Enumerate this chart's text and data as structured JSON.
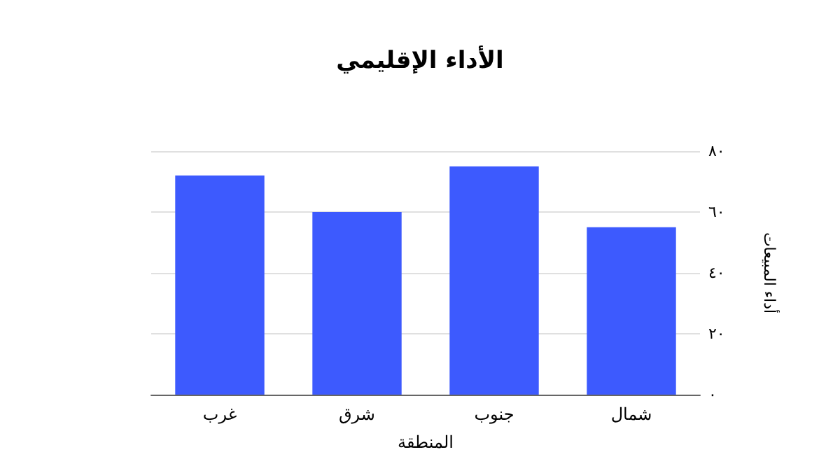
{
  "chart_data": {
    "type": "bar",
    "title": "الأداء الإقليمي",
    "xlabel": "المنطقة",
    "ylabel": "أداء المبيعات",
    "categories": [
      "غرب",
      "شرق",
      "جنوب",
      "شمال"
    ],
    "values": [
      72,
      60,
      75,
      55
    ],
    "color": "#3d5afe",
    "ylim": [
      0,
      80
    ],
    "yticks": [
      {
        "value": 0,
        "label": "٠"
      },
      {
        "value": 20,
        "label": "٢٠"
      },
      {
        "value": 40,
        "label": "٤٠"
      },
      {
        "value": 60,
        "label": "٦٠"
      },
      {
        "value": 80,
        "label": "٨٠"
      }
    ],
    "grid": "y"
  }
}
